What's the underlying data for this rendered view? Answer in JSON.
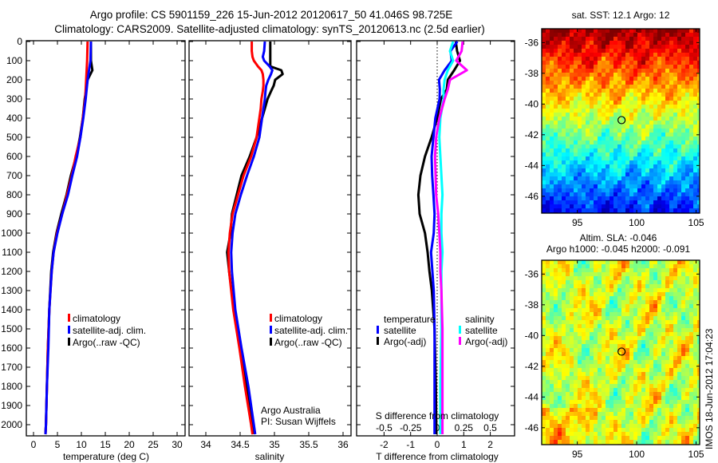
{
  "header": {
    "title_line1": "Argo profile: CS 5901159_226 15-Jun-2012 20120617_50 41.046S 98.725E",
    "title_line2": "Climatology: CARS2009. Satellite-adjusted climatology: synTS_20120613.nc (2.5d earlier)"
  },
  "colors": {
    "climatology": "#ff0000",
    "satellite": "#0000ff",
    "argo": "#000000",
    "s_satellite": "#00ffff",
    "s_argo": "#ff00ff"
  },
  "depth_ticks": [
    "0",
    "100",
    "200",
    "300",
    "400",
    "500",
    "600",
    "700",
    "800",
    "900",
    "1000",
    "1100",
    "1200",
    "1300",
    "1400",
    "1500",
    "1600",
    "1700",
    "1800",
    "1900",
    "2000"
  ],
  "legend": {
    "climatology": "climatology",
    "satellite_adj": "satellite-adj. clim.",
    "argo_raw": "Argo(..raw -QC)",
    "temperature": "temperature",
    "salinity": "salinity",
    "satellite": "satellite",
    "argo_adj": "Argo(-adj)"
  },
  "credits": {
    "line1": "Argo Australia",
    "line2": "PI: Susan Wijffels"
  },
  "footer_stamp": "IMOS 18-Jun-2012 17:04:23",
  "chart_data": [
    {
      "type": "line",
      "title": "",
      "xlabel": "temperature (deg C)",
      "ylabel": "depth",
      "xlim": [
        -1.5,
        31.5
      ],
      "ylim": [
        2050,
        0
      ],
      "xticks": [
        "0",
        "5",
        "10",
        "15",
        "20",
        "25",
        "30"
      ],
      "depth": [
        0,
        100,
        150,
        200,
        300,
        400,
        500,
        600,
        700,
        800,
        900,
        1000,
        1100,
        1200,
        1400,
        1600,
        1800,
        2000,
        2050
      ],
      "series": [
        {
          "name": "climatology",
          "values": [
            11.3,
            11.2,
            11.1,
            11.0,
            10.8,
            10.3,
            9.8,
            8.8,
            8.0,
            7.0,
            6.0,
            4.9,
            4.2,
            3.8,
            3.3,
            3.0,
            2.8,
            2.6,
            2.5
          ]
        },
        {
          "name": "satellite-adj. clim.",
          "values": [
            12.0,
            11.9,
            11.6,
            11.3,
            10.9,
            10.4,
            9.8,
            9.1,
            8.1,
            7.2,
            6.0,
            5.0,
            4.2,
            3.8,
            3.3,
            3.1,
            2.8,
            2.6,
            2.5
          ]
        },
        {
          "name": "Argo(..raw -QC)",
          "values": [
            12.0,
            12.0,
            12.3,
            11.3,
            10.7,
            10.3,
            9.7,
            8.9,
            7.8,
            6.9,
            5.8,
            4.8,
            4.1,
            3.7,
            3.3,
            3.0,
            2.8,
            2.6,
            2.5
          ]
        }
      ]
    },
    {
      "type": "line",
      "xlabel": "salinity",
      "xlim": [
        33.75,
        36.1
      ],
      "ylim": [
        2050,
        0
      ],
      "xticks": [
        "34",
        "34.5",
        "35",
        "35.5",
        "36"
      ],
      "depth": [
        0,
        50,
        80,
        100,
        130,
        150,
        170,
        200,
        230,
        260,
        300,
        350,
        400,
        500,
        600,
        700,
        800,
        900,
        1000,
        1100,
        1200,
        1400,
        1600,
        1800,
        2000,
        2050
      ],
      "series": [
        {
          "name": "climatology",
          "values": [
            34.67,
            34.67,
            34.68,
            34.7,
            34.76,
            34.81,
            34.83,
            34.84,
            34.84,
            34.83,
            34.81,
            34.8,
            34.78,
            34.74,
            34.66,
            34.55,
            34.47,
            34.39,
            34.35,
            34.33,
            34.34,
            34.4,
            34.49,
            34.57,
            34.66,
            34.68
          ]
        },
        {
          "name": "satellite-adj. clim.",
          "values": [
            34.86,
            34.85,
            34.83,
            34.85,
            34.93,
            34.97,
            34.95,
            34.91,
            34.88,
            34.87,
            34.86,
            34.84,
            34.82,
            34.78,
            34.7,
            34.6,
            34.51,
            34.43,
            34.39,
            34.37,
            34.38,
            34.43,
            34.52,
            34.62,
            34.7,
            34.72
          ]
        },
        {
          "name": "Argo(..raw -QC)",
          "values": [
            34.94,
            34.94,
            34.94,
            34.94,
            34.94,
            35.1,
            35.12,
            35.01,
            34.99,
            34.95,
            34.9,
            34.86,
            34.82,
            34.74,
            34.64,
            34.52,
            34.45,
            34.38,
            34.36,
            34.31,
            34.34,
            34.41,
            34.51,
            34.6,
            34.67,
            34.69
          ]
        }
      ]
    },
    {
      "type": "line",
      "xlabel": "T difference from climatology",
      "xlabel2": "S difference from climatology",
      "xlim": [
        -2.0,
        3.0
      ],
      "ylim": [
        2050,
        0
      ],
      "xticks": [
        "-2",
        "-1",
        "0",
        "1",
        "2"
      ],
      "xticks2": [
        "-0.5",
        "-0.25",
        "0",
        "0.25",
        "0.5"
      ],
      "depth": [
        0,
        50,
        100,
        150,
        200,
        250,
        300,
        400,
        500,
        600,
        700,
        800,
        900,
        1000,
        1100,
        1200,
        1300,
        1500,
        1800,
        2050
      ],
      "series": [
        {
          "name": "temperature satellite",
          "units": "degC",
          "values": [
            0.76,
            0.5,
            0.55,
            0.28,
            0.07,
            0.1,
            0.09,
            -0.07,
            -0.14,
            -0.21,
            -0.19,
            -0.14,
            -0.1,
            -0.13,
            -0.23,
            -0.18,
            -0.13,
            -0.1,
            -0.1,
            -0.1
          ]
        },
        {
          "name": "temperature Argo(-adj)",
          "units": "degC",
          "values": [
            0.7,
            0.75,
            0.86,
            0.64,
            0.4,
            0.36,
            0.14,
            0.0,
            -0.21,
            -0.46,
            -0.63,
            -0.71,
            -0.66,
            -0.46,
            -0.36,
            -0.29,
            -0.2,
            -0.1,
            -0.05,
            -0.03
          ]
        },
        {
          "name": "salinity satellite",
          "units": "psu",
          "values": [
            0.15,
            0.12,
            0.15,
            0.1,
            0.07,
            0.06,
            0.06,
            0.03,
            0.02,
            0.03,
            0.04,
            0.05,
            0.04,
            0.04,
            0.05,
            0.04,
            0.04,
            0.04,
            0.03,
            0.03
          ]
        },
        {
          "name": "salinity Argo(-adj)",
          "units": "psu",
          "values": [
            0.24,
            0.23,
            0.18,
            0.28,
            0.12,
            0.1,
            0.07,
            0.02,
            -0.01,
            -0.02,
            -0.015,
            -0.01,
            0.01,
            0.02,
            0.03,
            0.03,
            0.04,
            0.05,
            0.05,
            0.05
          ]
        }
      ]
    },
    {
      "type": "heatmap",
      "title": "sat. SST: 12.1 Argo: 12",
      "xlim": [
        92,
        105.3
      ],
      "ylim": [
        -47.1,
        -35.1
      ],
      "xticks": [
        "95",
        "100",
        "105"
      ],
      "yticks": [
        "-36",
        "-38",
        "-40",
        "-42",
        "-44",
        "-46"
      ],
      "marker": {
        "lon": 98.725,
        "lat": -41.046
      }
    },
    {
      "type": "heatmap",
      "title": "Altim. SLA: -0.046",
      "subtitle": "Argo h1000: -0.045 h2000: -0.091",
      "xlim": [
        92,
        105.3
      ],
      "ylim": [
        -47.1,
        -35.1
      ],
      "xticks": [
        "95",
        "100",
        "105"
      ],
      "yticks": [
        "-36",
        "-38",
        "-40",
        "-42",
        "-44",
        "-46"
      ],
      "marker": {
        "lon": 98.725,
        "lat": -41.046
      }
    }
  ]
}
